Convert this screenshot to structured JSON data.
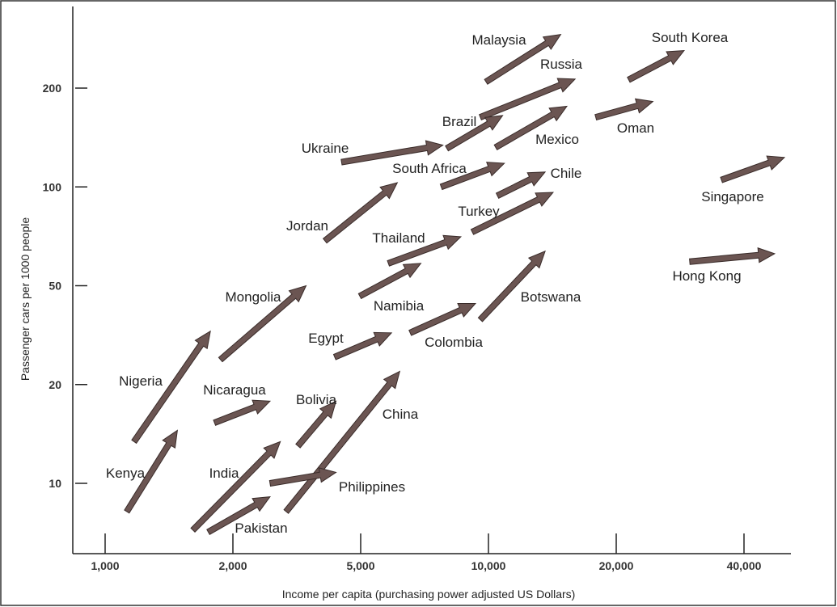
{
  "chart_data": {
    "type": "arrow",
    "x_label": "Income per capita (purchasing power adjusted US Dollars)",
    "y_label": "Passenger cars per 1000 people",
    "log_x": true,
    "log_y": true,
    "color": "#6b5552",
    "xlim": [
      840,
      51700
    ],
    "xticks": [
      {
        "value": 1000,
        "label": "1,000"
      },
      {
        "value": 2000,
        "label": "2,000"
      },
      {
        "value": 5000,
        "label": "5,000"
      },
      {
        "value": 10000,
        "label": "10,000"
      },
      {
        "value": 20000,
        "label": "20,000"
      },
      {
        "value": 40000,
        "label": "40,000"
      }
    ],
    "ylim": [
      6.1,
      350
    ],
    "yticks": [
      10,
      20,
      50,
      100,
      200
    ],
    "series": [
      {
        "name": "Malaysia",
        "x": [
          9870,
          14800
        ],
        "y": [
          209,
          291
        ]
      },
      {
        "name": "Russia",
        "x": [
          9570,
          16000
        ],
        "y": [
          163,
          213
        ]
      },
      {
        "name": "South Korea",
        "x": [
          21400,
          28900
        ],
        "y": [
          212,
          260
        ]
      },
      {
        "name": "Brazil",
        "x": [
          7980,
          10800
        ],
        "y": [
          131,
          165
        ]
      },
      {
        "name": "Mexico",
        "x": [
          10400,
          15300
        ],
        "y": [
          132,
          176
        ]
      },
      {
        "name": "Oman",
        "x": [
          17900,
          24400
        ],
        "y": [
          163,
          182
        ]
      },
      {
        "name": "Ukraine",
        "x": [
          4360,
          7810
        ],
        "y": [
          119,
          134
        ]
      },
      {
        "name": "South Africa",
        "x": [
          7740,
          10900
        ],
        "y": [
          100,
          118
        ]
      },
      {
        "name": "Chile",
        "x": [
          10500,
          13600
        ],
        "y": [
          94,
          111
        ]
      },
      {
        "name": "Singapore",
        "x": [
          35400,
          49900
        ],
        "y": [
          105,
          123
        ]
      },
      {
        "name": "Jordan",
        "x": [
          3870,
          6100
        ],
        "y": [
          68.5,
          103
        ]
      },
      {
        "name": "Turkey",
        "x": [
          9160,
          14200
        ],
        "y": [
          72.9,
          96.2
        ]
      },
      {
        "name": "Thailand",
        "x": [
          5810,
          8610
        ],
        "y": [
          58.5,
          70.5
        ]
      },
      {
        "name": "Hong Kong",
        "x": [
          29800,
          47300
        ],
        "y": [
          59.2,
          62.6
        ]
      },
      {
        "name": "Mongolia",
        "x": [
          1870,
          3380
        ],
        "y": [
          25.2,
          50
        ]
      },
      {
        "name": "Namibia",
        "x": [
          4970,
          6930
        ],
        "y": [
          45.4,
          58.5
        ]
      },
      {
        "name": "Botswana",
        "x": [
          9570,
          13600
        ],
        "y": [
          36.5,
          63.7
        ]
      },
      {
        "name": "Egypt",
        "x": [
          4150,
          5910
        ],
        "y": [
          25.8,
          32.3
        ]
      },
      {
        "name": "Colombia",
        "x": [
          6540,
          9320
        ],
        "y": [
          32.3,
          42.4
        ]
      },
      {
        "name": "Nigeria",
        "x": [
          1170,
          1770
        ],
        "y": [
          13.4,
          32.8
        ]
      },
      {
        "name": "Nicaragua",
        "x": [
          1810,
          2610
        ],
        "y": [
          15.3,
          17.8
        ]
      },
      {
        "name": "Bolivia",
        "x": [
          3190,
          4190
        ],
        "y": [
          13.0,
          17.8
        ]
      },
      {
        "name": "China",
        "x": [
          2930,
          6180
        ],
        "y": [
          8.2,
          22.6
        ]
      },
      {
        "name": "Kenya",
        "x": [
          1125,
          1480
        ],
        "y": [
          8.2,
          14.5
        ]
      },
      {
        "name": "India",
        "x": [
          1610,
          2810
        ],
        "y": [
          7.2,
          13.4
        ]
      },
      {
        "name": "Philippines",
        "x": [
          2610,
          4190
        ],
        "y": [
          10.0,
          10.8
        ]
      },
      {
        "name": "Pakistan",
        "x": [
          1750,
          2610
        ],
        "y": [
          7.1,
          9.1
        ]
      }
    ]
  }
}
